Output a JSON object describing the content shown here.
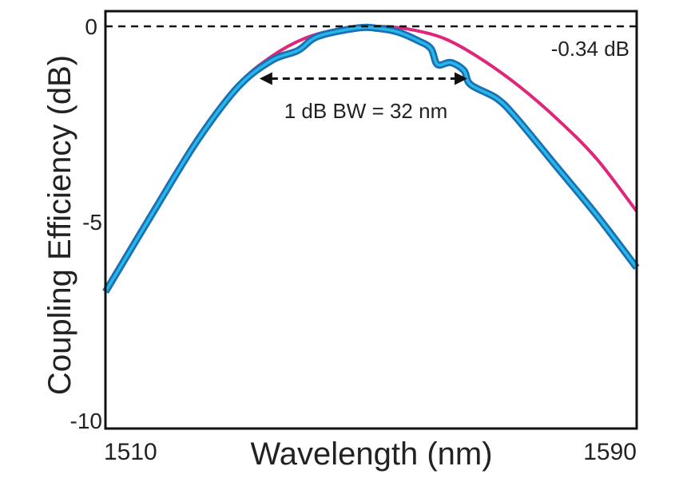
{
  "chart_data": {
    "type": "line",
    "title": "",
    "xlabel": "Wavelength (nm)",
    "ylabel": "Coupling Efficiency (dB)",
    "xlim": [
      1510,
      1590
    ],
    "ylim": [
      -10,
      0
    ],
    "xticks": [
      "1510",
      "1590"
    ],
    "yticks": [
      "0",
      "-5",
      "-10"
    ],
    "grid": false,
    "series": [
      {
        "color": "#e0267a",
        "points": [
          [
            1510,
            -6.6
          ],
          [
            1518,
            -4.4
          ],
          [
            1524,
            -2.8
          ],
          [
            1530,
            -1.45
          ],
          [
            1535,
            -0.75
          ],
          [
            1540,
            -0.3
          ],
          [
            1545,
            -0.08
          ],
          [
            1551,
            0
          ],
          [
            1556,
            -0.08
          ],
          [
            1561,
            -0.3
          ],
          [
            1566,
            -0.75
          ],
          [
            1572,
            -1.45
          ],
          [
            1578,
            -2.3
          ],
          [
            1584,
            -3.3
          ],
          [
            1590,
            -4.6
          ]
        ]
      },
      {
        "color": "#27b8e8",
        "outline": "#1b6fb5",
        "points": [
          [
            1510,
            -6.6
          ],
          [
            1518,
            -4.4
          ],
          [
            1524,
            -2.8
          ],
          [
            1530,
            -1.5
          ],
          [
            1535,
            -0.85
          ],
          [
            1539,
            -0.6
          ],
          [
            1542,
            -0.25
          ],
          [
            1548,
            -0.04
          ],
          [
            1551,
            -0.05
          ],
          [
            1554,
            -0.14
          ],
          [
            1557,
            -0.35
          ],
          [
            1559,
            -0.55
          ],
          [
            1560,
            -0.95
          ],
          [
            1562,
            -0.9
          ],
          [
            1564,
            -1.1
          ],
          [
            1565,
            -1.45
          ],
          [
            1569,
            -1.8
          ],
          [
            1572,
            -2.3
          ],
          [
            1578,
            -3.5
          ],
          [
            1584,
            -4.7
          ],
          [
            1590,
            -6.0
          ]
        ]
      }
    ],
    "reference_line": {
      "y": 0,
      "style": "dashed"
    },
    "annotations": {
      "peak_label": "-0.34 dB",
      "bandwidth_label": "1 dB BW = 32 nm",
      "bandwidth_arrow": {
        "x_start": 1533.2,
        "x_end": 1564.5,
        "y": -1.3
      }
    }
  }
}
